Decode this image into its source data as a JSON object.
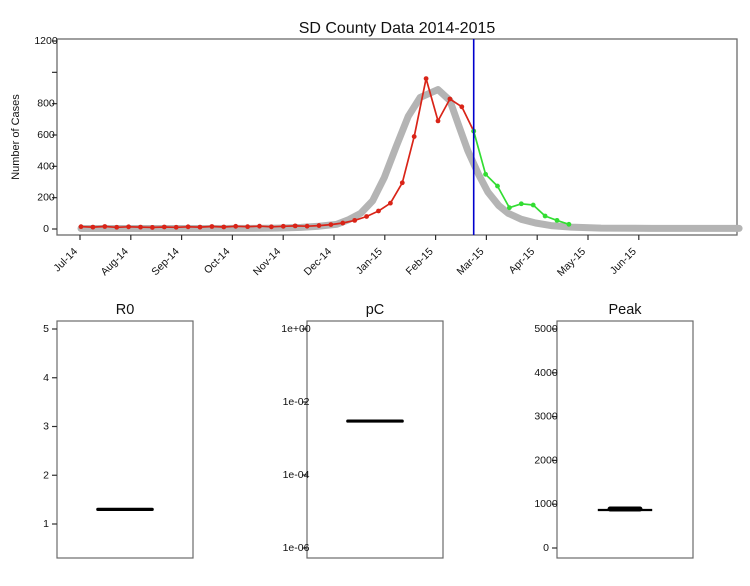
{
  "figure": {
    "background": "#ffffff",
    "frame_color": "#6b6b6b",
    "tick_color": "#2e2e2e",
    "text_color": "#111111"
  },
  "chart_data": [
    {
      "id": "main-epidemic-curve",
      "type": "line",
      "title": "SD County Data 2014-2015",
      "xlabel": "",
      "ylabel": "Number of Cases",
      "x_unit": "weeks since Jul-2014, month ticks on axis",
      "month_tick_labels": [
        "Jul-14",
        "Aug-14",
        "Sep-14",
        "Oct-14",
        "Nov-14",
        "Dec-14",
        "Jan-15",
        "Feb-15",
        "Mar-15",
        "Apr-15",
        "May-15",
        "Jun-15"
      ],
      "y_ticks": [
        0,
        200,
        400,
        600,
        800,
        1000,
        1200
      ],
      "y_tick_labels": [
        "0",
        "200",
        "400",
        "600",
        "800",
        "",
        "1200"
      ],
      "ylim": [
        0,
        1250
      ],
      "grid": "off",
      "legend": "none",
      "forecast_start_line": {
        "color": "#0000cd",
        "week": 33
      },
      "series": [
        {
          "name": "model-fit-band",
          "color": "#b4b4b4",
          "style": "thick-line",
          "weeks": [
            0,
            5,
            10,
            14,
            16.5,
            18.5,
            20,
            21.5,
            22.5,
            23.5,
            24.5,
            25.5,
            26.5,
            27.5,
            28.5,
            30,
            31,
            31.7,
            32.5,
            33.4,
            34.2,
            35.1,
            35.9,
            37,
            38.2,
            39.5,
            41.2,
            43.7,
            47.9,
            52.2,
            55.3
          ],
          "values": [
            3,
            3,
            3,
            4,
            6,
            10,
            18,
            30,
            60,
            100,
            180,
            330,
            530,
            720,
            840,
            890,
            820,
            670,
            500,
            350,
            235,
            150,
            100,
            62,
            38,
            22,
            12,
            6,
            4,
            4,
            4
          ]
        },
        {
          "name": "observed-cases",
          "color": "#d92418",
          "style": "line-markers",
          "marker": "circle",
          "week_start": 0,
          "values": [
            15,
            12,
            16,
            11,
            14,
            12,
            10,
            13,
            11,
            14,
            12,
            16,
            13,
            17,
            15,
            18,
            14,
            17,
            20,
            18,
            22,
            28,
            38,
            55,
            80,
            115,
            165,
            295,
            590,
            960,
            690,
            830,
            780,
            625
          ]
        },
        {
          "name": "forecast-cases",
          "color": "#32dd32",
          "style": "line-markers",
          "marker": "circle",
          "week_start": 33,
          "values": [
            625,
            349,
            274,
            136,
            161,
            153,
            83,
            55,
            30
          ]
        }
      ]
    },
    {
      "id": "r0-posterior",
      "type": "boxplot",
      "title": "R0",
      "scale": "linear",
      "y_ticks": [
        1,
        2,
        3,
        4,
        5
      ],
      "y_tick_labels": [
        "1",
        "2",
        "3",
        "4",
        "5"
      ],
      "ylim": [
        0.3,
        5.2
      ],
      "median": 1.3
    },
    {
      "id": "pc-posterior",
      "type": "boxplot",
      "title": "pC",
      "scale": "log10",
      "y_ticks": [
        1,
        0.01,
        0.0001,
        1e-06
      ],
      "y_tick_labels": [
        "1e+00",
        "1e-02",
        "1e-04",
        "1e-06"
      ],
      "ylim": [
        5.4e-07,
        1.66
      ],
      "median": 0.003
    },
    {
      "id": "peak-posterior",
      "type": "boxplot",
      "title": "Peak",
      "scale": "linear",
      "y_ticks": [
        0,
        1000,
        2000,
        3000,
        4000,
        5000
      ],
      "y_tick_labels": [
        "0",
        "1000",
        "2000",
        "3000",
        "4000",
        "5000"
      ],
      "ylim": [
        -230,
        5180
      ],
      "median": 890,
      "range_low": 868,
      "range_high": 905
    }
  ]
}
